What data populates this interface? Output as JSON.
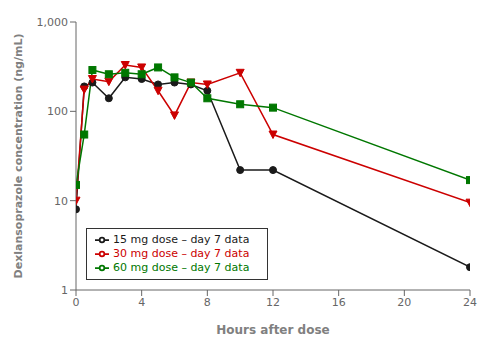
{
  "chart_data": {
    "type": "line",
    "x": [
      0,
      0.5,
      1,
      2,
      3,
      4,
      5,
      6,
      7,
      8,
      10,
      12,
      24
    ],
    "series": [
      {
        "name": "15 mg dose – day 7 data",
        "color": "#1a1a1a",
        "marker": "circle",
        "values": [
          8,
          190,
          210,
          140,
          240,
          230,
          200,
          210,
          200,
          170,
          22,
          22,
          1.8
        ]
      },
      {
        "name": "30 mg dose – day 7 data",
        "color": "#cc0000",
        "marker": "triangle_down",
        "values": [
          10,
          175,
          230,
          215,
          330,
          310,
          170,
          90,
          210,
          200,
          270,
          55,
          9.5
        ]
      },
      {
        "name": "60 mg dose – day 7 data",
        "color": "#007700",
        "marker": "square",
        "values": [
          15,
          55,
          290,
          260,
          270,
          260,
          310,
          240,
          210,
          140,
          120,
          110,
          17
        ]
      }
    ],
    "xlabel": "Hours after dose",
    "ylabel": "Dexlansoprazole concentration (ng/mL)",
    "xlim": [
      0,
      24
    ],
    "xticks": [
      0,
      4,
      8,
      12,
      16,
      20,
      24
    ],
    "ylim": [
      1,
      1000
    ],
    "yticks": [
      1,
      10,
      100,
      {
        "value": 1000,
        "label": "1,000"
      }
    ],
    "log": "y",
    "grid": false,
    "legend": "lower left"
  }
}
